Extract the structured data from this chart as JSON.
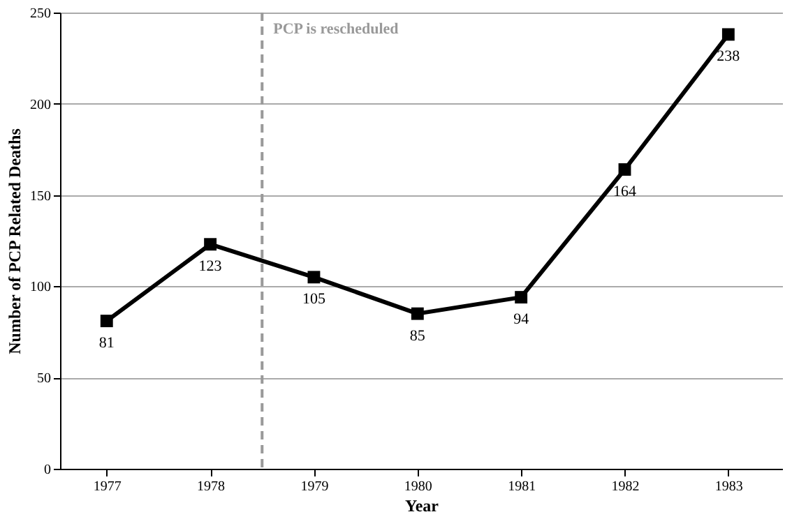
{
  "chart_data": {
    "type": "line",
    "xlabel": "Year",
    "ylabel": "Number of PCP Related Deaths",
    "x": [
      1977,
      1978,
      1979,
      1980,
      1981,
      1982,
      1983
    ],
    "series": [
      {
        "color": "#000000",
        "values": [
          81,
          123,
          105,
          85,
          94,
          164,
          238
        ]
      }
    ],
    "xlim": [
      1976.55,
      1983.52
    ],
    "xticks": [
      1977,
      1978,
      1979,
      1980,
      1981,
      1982,
      1983
    ],
    "ylim": [
      0,
      250
    ],
    "yticks": [
      0,
      50,
      100,
      150,
      200,
      250
    ],
    "grid": "y",
    "marker": "square",
    "line_style": "solid",
    "data_labels": true,
    "ref_lines": [
      {
        "axis": "x",
        "value": 1978.5,
        "label": "PCP is rescheduled",
        "color": "#999999",
        "line_style": "dashed"
      }
    ]
  }
}
